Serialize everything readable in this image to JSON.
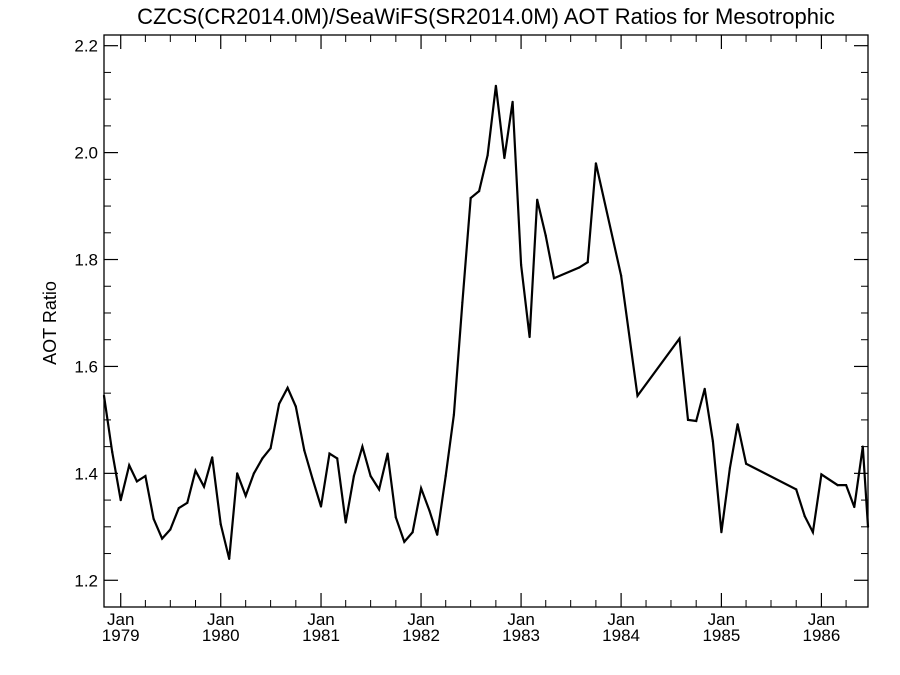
{
  "chart_data": {
    "type": "line",
    "title": "CZCS(CR2014.0M)/SeaWiFS(SR2014.0M)  AOT Ratios for Mesotrophic",
    "xlabel": "",
    "ylabel": "AOT Ratio",
    "xlim": [
      "1978-11-01",
      "1986-06-20"
    ],
    "ylim": [
      1.15,
      2.22
    ],
    "y_ticks": [
      1.2,
      1.4,
      1.6,
      1.8,
      2.0,
      2.2
    ],
    "y_tick_labels": [
      "1.2",
      "1.4",
      "1.6",
      "1.8",
      "2.0",
      "2.2"
    ],
    "x_ticks": [
      {
        "date": "1979-01-01",
        "month": "Jan",
        "year": "1979"
      },
      {
        "date": "1980-01-01",
        "month": "Jan",
        "year": "1980"
      },
      {
        "date": "1981-01-01",
        "month": "Jan",
        "year": "1981"
      },
      {
        "date": "1982-01-01",
        "month": "Jan",
        "year": "1982"
      },
      {
        "date": "1983-01-01",
        "month": "Jan",
        "year": "1983"
      },
      {
        "date": "1984-01-01",
        "month": "Jan",
        "year": "1984"
      },
      {
        "date": "1985-01-01",
        "month": "Jan",
        "year": "1985"
      },
      {
        "date": "1986-01-01",
        "month": "Jan",
        "year": "1986"
      }
    ],
    "grid": false,
    "series": [
      {
        "color": "#000000",
        "points": [
          [
            "1978-11-01",
            1.545
          ],
          [
            "1978-12-01",
            1.44
          ],
          [
            "1979-01-01",
            1.35
          ],
          [
            "1979-02-01",
            1.415
          ],
          [
            "1979-03-01",
            1.385
          ],
          [
            "1979-04-01",
            1.395
          ],
          [
            "1979-05-01",
            1.315
          ],
          [
            "1979-06-01",
            1.278
          ],
          [
            "1979-07-01",
            1.295
          ],
          [
            "1979-08-01",
            1.335
          ],
          [
            "1979-09-01",
            1.345
          ],
          [
            "1979-10-01",
            1.405
          ],
          [
            "1979-11-01",
            1.375
          ],
          [
            "1979-12-01",
            1.43
          ],
          [
            "1980-01-01",
            1.305
          ],
          [
            "1980-02-01",
            1.24
          ],
          [
            "1980-03-01",
            1.4
          ],
          [
            "1980-04-01",
            1.358
          ],
          [
            "1980-05-01",
            1.4
          ],
          [
            "1980-06-01",
            1.428
          ],
          [
            "1980-07-01",
            1.447
          ],
          [
            "1980-08-01",
            1.53
          ],
          [
            "1980-09-01",
            1.56
          ],
          [
            "1980-10-01",
            1.525
          ],
          [
            "1980-11-01",
            1.443
          ],
          [
            "1980-12-01",
            1.39
          ],
          [
            "1981-01-01",
            1.338
          ],
          [
            "1981-02-01",
            1.437
          ],
          [
            "1981-03-01",
            1.428
          ],
          [
            "1981-04-01",
            1.308
          ],
          [
            "1981-05-01",
            1.395
          ],
          [
            "1981-06-01",
            1.45
          ],
          [
            "1981-07-01",
            1.395
          ],
          [
            "1981-08-01",
            1.37
          ],
          [
            "1981-09-01",
            1.437
          ],
          [
            "1981-10-01",
            1.318
          ],
          [
            "1981-11-01",
            1.272
          ],
          [
            "1981-12-01",
            1.29
          ],
          [
            "1982-01-01",
            1.372
          ],
          [
            "1982-02-01",
            1.33
          ],
          [
            "1982-03-01",
            1.285
          ],
          [
            "1982-04-01",
            1.395
          ],
          [
            "1982-05-01",
            1.51
          ],
          [
            "1982-06-01",
            1.72
          ],
          [
            "1982-07-01",
            1.915
          ],
          [
            "1982-08-01",
            1.928
          ],
          [
            "1982-09-01",
            1.995
          ],
          [
            "1982-10-01",
            2.125
          ],
          [
            "1982-11-01",
            1.99
          ],
          [
            "1982-12-01",
            2.095
          ],
          [
            "1983-01-01",
            1.79
          ],
          [
            "1983-02-01",
            1.655
          ],
          [
            "1983-03-01",
            1.912
          ],
          [
            "1983-04-01",
            1.845
          ],
          [
            "1983-05-01",
            1.765
          ],
          [
            "1983-08-01",
            1.785
          ],
          [
            "1983-09-01",
            1.795
          ],
          [
            "1983-10-01",
            1.98
          ],
          [
            "1984-01-01",
            1.77
          ],
          [
            "1984-03-01",
            1.545
          ],
          [
            "1984-08-01",
            1.652
          ],
          [
            "1984-09-01",
            1.5
          ],
          [
            "1984-10-01",
            1.498
          ],
          [
            "1984-11-01",
            1.558
          ],
          [
            "1984-12-01",
            1.46
          ],
          [
            "1985-01-01",
            1.29
          ],
          [
            "1985-02-01",
            1.41
          ],
          [
            "1985-03-01",
            1.492
          ],
          [
            "1985-04-01",
            1.418
          ],
          [
            "1985-10-01",
            1.37
          ],
          [
            "1985-11-01",
            1.32
          ],
          [
            "1985-12-01",
            1.29
          ],
          [
            "1986-01-01",
            1.398
          ],
          [
            "1986-03-01",
            1.378
          ],
          [
            "1986-04-01",
            1.378
          ],
          [
            "1986-05-01",
            1.337
          ],
          [
            "1986-06-01",
            1.45
          ],
          [
            "1986-06-20",
            1.3
          ]
        ]
      }
    ]
  }
}
